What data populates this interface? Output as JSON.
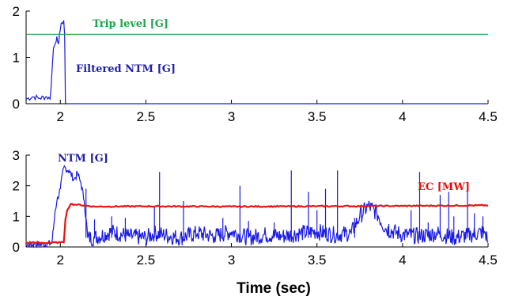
{
  "chart_data": [
    {
      "type": "line",
      "xlim": [
        1.8,
        4.5
      ],
      "ylim": [
        0,
        2
      ],
      "xticks": [
        "2",
        "2.5",
        "3",
        "3.5",
        "4",
        "4.5"
      ],
      "yticks": [
        "0",
        "1",
        "2"
      ],
      "grid": false,
      "annotations": [
        {
          "text": "Trip level [G]",
          "color": "#1aa64a"
        },
        {
          "text": "Filtered NTM [G]",
          "color": "#1f1fa8"
        }
      ],
      "series": [
        {
          "color": "#1a1ae6",
          "x": [
            1.8,
            1.84,
            1.88,
            1.92,
            1.94,
            1.95,
            1.96,
            1.97,
            1.98,
            1.99,
            2.0,
            2.01,
            2.02,
            2.025,
            2.03,
            2.035,
            4.5
          ],
          "y": [
            0.1,
            0.15,
            0.12,
            0.15,
            0.1,
            0.6,
            1.2,
            1.3,
            1.45,
            1.3,
            1.6,
            1.75,
            1.8,
            1.5,
            0.0,
            0.0,
            0.0
          ]
        },
        {
          "color": "#1aa64a",
          "x": [
            1.8,
            4.5
          ],
          "y": [
            1.5,
            1.5
          ]
        }
      ]
    },
    {
      "type": "line",
      "xlim": [
        1.8,
        4.5
      ],
      "ylim": [
        0,
        3
      ],
      "xticks": [
        "2",
        "2.5",
        "3",
        "3.5",
        "4",
        "4.5"
      ],
      "yticks": [
        "0",
        "1",
        "2",
        "3"
      ],
      "xlabel": "Time (sec)",
      "grid": false,
      "annotations": [
        {
          "text": "NTM [G]",
          "color": "#1f1fa8"
        },
        {
          "text": "EC [MW]",
          "color": "#e01010"
        }
      ],
      "series": [
        {
          "color": "#1a1ae6",
          "x": [
            1.8,
            1.85,
            1.9,
            1.95,
            1.96,
            1.97,
            1.98,
            2.0,
            2.02,
            2.05,
            2.08,
            2.1,
            2.12,
            2.14,
            2.16,
            2.2,
            2.3,
            2.4,
            2.5,
            2.55,
            2.6,
            2.7,
            2.8,
            2.9,
            3.0,
            3.1,
            3.2,
            3.3,
            3.4,
            3.5,
            3.6,
            3.7,
            3.75,
            3.8,
            3.85,
            3.9,
            4.0,
            4.1,
            4.2,
            4.3,
            4.4,
            4.48,
            4.5
          ],
          "y": [
            0.05,
            0.1,
            0.08,
            0.12,
            0.6,
            1.2,
            1.5,
            1.9,
            2.6,
            2.5,
            2.2,
            2.4,
            2.1,
            1.5,
            0.3,
            0.3,
            0.5,
            0.35,
            0.3,
            0.45,
            0.4,
            0.3,
            0.45,
            0.35,
            0.5,
            0.3,
            0.4,
            0.35,
            0.45,
            0.5,
            0.4,
            0.45,
            1.0,
            1.35,
            1.1,
            0.6,
            0.4,
            0.35,
            0.45,
            0.3,
            0.4,
            0.5,
            0.2
          ],
          "spikes": [
            {
              "x": 2.15,
              "y": 1.9
            },
            {
              "x": 2.2,
              "y": 0.9
            },
            {
              "x": 2.3,
              "y": 1.0
            },
            {
              "x": 2.38,
              "y": 0.95
            },
            {
              "x": 2.55,
              "y": 1.3
            },
            {
              "x": 2.58,
              "y": 2.45
            },
            {
              "x": 2.72,
              "y": 1.5
            },
            {
              "x": 2.95,
              "y": 0.95
            },
            {
              "x": 3.05,
              "y": 2.0
            },
            {
              "x": 3.1,
              "y": 0.85
            },
            {
              "x": 3.25,
              "y": 0.8
            },
            {
              "x": 3.35,
              "y": 2.5
            },
            {
              "x": 3.45,
              "y": 1.8
            },
            {
              "x": 3.5,
              "y": 1.2
            },
            {
              "x": 3.55,
              "y": 1.9
            },
            {
              "x": 3.62,
              "y": 2.5
            },
            {
              "x": 3.72,
              "y": 0.95
            },
            {
              "x": 3.92,
              "y": 0.75
            },
            {
              "x": 4.05,
              "y": 1.2
            },
            {
              "x": 4.1,
              "y": 2.45
            },
            {
              "x": 4.15,
              "y": 0.8
            },
            {
              "x": 4.22,
              "y": 1.7
            },
            {
              "x": 4.27,
              "y": 1.8
            },
            {
              "x": 4.3,
              "y": 1.0
            },
            {
              "x": 4.38,
              "y": 1.9
            },
            {
              "x": 4.42,
              "y": 1.1
            },
            {
              "x": 4.47,
              "y": 1.0
            }
          ]
        },
        {
          "color": "#e61414",
          "x": [
            1.8,
            1.85,
            1.9,
            1.95,
            2.0,
            2.02,
            2.03,
            2.04,
            2.06,
            2.1,
            2.2,
            2.5,
            3.0,
            3.5,
            4.0,
            4.5
          ],
          "y": [
            0.13,
            0.14,
            0.13,
            0.14,
            0.15,
            0.15,
            0.9,
            1.2,
            1.4,
            1.38,
            1.32,
            1.33,
            1.32,
            1.33,
            1.34,
            1.36
          ]
        }
      ]
    }
  ]
}
